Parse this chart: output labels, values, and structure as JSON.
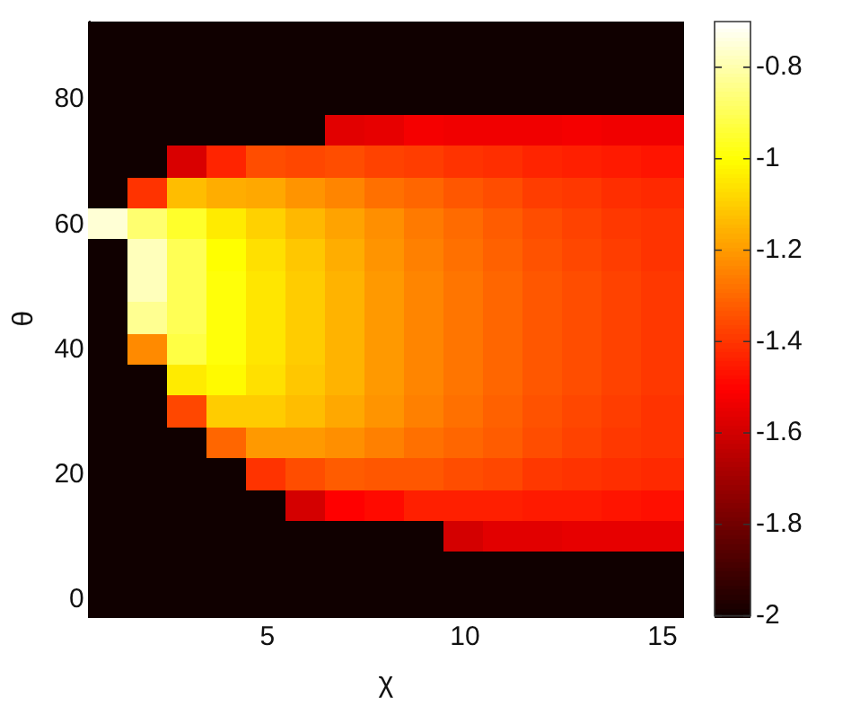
{
  "chart_data": {
    "type": "heatmap",
    "xlabel": "χ",
    "ylabel": "θ",
    "categories": [
      null,
      null,
      null,
      null,
      "5",
      null,
      null,
      null,
      null,
      "10",
      null,
      null,
      null,
      null,
      "15"
    ],
    "y_categories": [
      null,
      null,
      "80",
      null,
      null,
      null,
      "60",
      null,
      null,
      null,
      "40",
      null,
      null,
      null,
      "20",
      null,
      null,
      null,
      "0"
    ],
    "clim": [
      -2,
      -0.7
    ],
    "cticks": [
      -2,
      -1.8,
      -1.6,
      -1.4,
      -1.2,
      -1,
      -0.8
    ],
    "cells": [
      [
        -2,
        -2,
        -2,
        -2,
        -2,
        -2,
        -2,
        -2,
        -2,
        -2,
        -2,
        -2,
        -2,
        -2,
        -2
      ],
      [
        -2,
        -2,
        -2,
        -2,
        -2,
        -2,
        -2,
        -2,
        -2,
        -2,
        -2,
        -2,
        -2,
        -2,
        -2
      ],
      [
        -2,
        -2,
        -2,
        -2,
        -2,
        -2,
        -2,
        -2,
        -2,
        -2,
        -2,
        -2,
        -2,
        -2,
        -2
      ],
      [
        -2,
        -2,
        -2,
        -2,
        -2,
        -2,
        -1.56,
        -1.55,
        -1.52,
        -1.53,
        -1.53,
        -1.53,
        -1.52,
        -1.53,
        -1.53
      ],
      [
        -2,
        -2,
        -1.58,
        -1.43,
        -1.35,
        -1.36,
        -1.35,
        -1.37,
        -1.38,
        -1.4,
        -1.41,
        -1.43,
        -1.44,
        -1.45,
        -1.46
      ],
      [
        -2,
        -1.4,
        -1.13,
        -1.16,
        -1.17,
        -1.21,
        -1.24,
        -1.28,
        -1.3,
        -1.33,
        -1.35,
        -1.38,
        -1.39,
        -1.41,
        -1.42
      ],
      [
        -0.75,
        -0.87,
        -0.95,
        -1.04,
        -1.09,
        -1.14,
        -1.18,
        -1.22,
        -1.26,
        -1.29,
        -1.32,
        -1.35,
        -1.37,
        -1.39,
        -1.4
      ],
      [
        -2,
        -0.78,
        -0.9,
        -1,
        -1.06,
        -1.11,
        -1.16,
        -1.21,
        -1.25,
        -1.28,
        -1.31,
        -1.34,
        -1.36,
        -1.38,
        -1.4
      ],
      [
        -2,
        -0.78,
        -0.9,
        -0.99,
        -1.05,
        -1.1,
        -1.15,
        -1.2,
        -1.24,
        -1.27,
        -1.3,
        -1.33,
        -1.35,
        -1.37,
        -1.39
      ],
      [
        -2,
        -0.83,
        -0.9,
        -0.99,
        -1.05,
        -1.1,
        -1.15,
        -1.2,
        -1.24,
        -1.27,
        -1.3,
        -1.33,
        -1.35,
        -1.37,
        -1.39
      ],
      [
        -2,
        -1.23,
        -0.92,
        -0.99,
        -1.05,
        -1.1,
        -1.15,
        -1.2,
        -1.24,
        -1.27,
        -1.3,
        -1.33,
        -1.35,
        -1.37,
        -1.39
      ],
      [
        -2,
        -2,
        -1.04,
        -1.01,
        -1.06,
        -1.11,
        -1.15,
        -1.2,
        -1.24,
        -1.27,
        -1.3,
        -1.33,
        -1.35,
        -1.37,
        -1.39
      ],
      [
        -2,
        -2,
        -1.36,
        -1.1,
        -1.1,
        -1.13,
        -1.17,
        -1.21,
        -1.25,
        -1.28,
        -1.31,
        -1.34,
        -1.36,
        -1.38,
        -1.4
      ],
      [
        -2,
        -2,
        -2,
        -1.3,
        -1.2,
        -1.2,
        -1.22,
        -1.25,
        -1.28,
        -1.3,
        -1.32,
        -1.35,
        -1.37,
        -1.39,
        -1.4
      ],
      [
        -2,
        -2,
        -2,
        -2,
        -1.4,
        -1.35,
        -1.32,
        -1.33,
        -1.33,
        -1.35,
        -1.36,
        -1.39,
        -1.4,
        -1.41,
        -1.42
      ],
      [
        -2,
        -2,
        -2,
        -2,
        -2,
        -1.59,
        -1.5,
        -1.48,
        -1.44,
        -1.44,
        -1.44,
        -1.45,
        -1.45,
        -1.46,
        -1.47
      ],
      [
        -2,
        -2,
        -2,
        -2,
        -2,
        -2,
        -2,
        -2,
        -2,
        -1.59,
        -1.56,
        -1.56,
        -1.55,
        -1.55,
        -1.55
      ],
      [
        -2,
        -2,
        -2,
        -2,
        -2,
        -2,
        -2,
        -2,
        -2,
        -2,
        -2,
        -2,
        -2,
        -2,
        -2
      ],
      [
        -2,
        -2,
        -2,
        -2,
        -2,
        -2,
        -2,
        -2,
        -2,
        -2,
        -2,
        -2,
        -2,
        -2,
        -2
      ]
    ]
  }
}
